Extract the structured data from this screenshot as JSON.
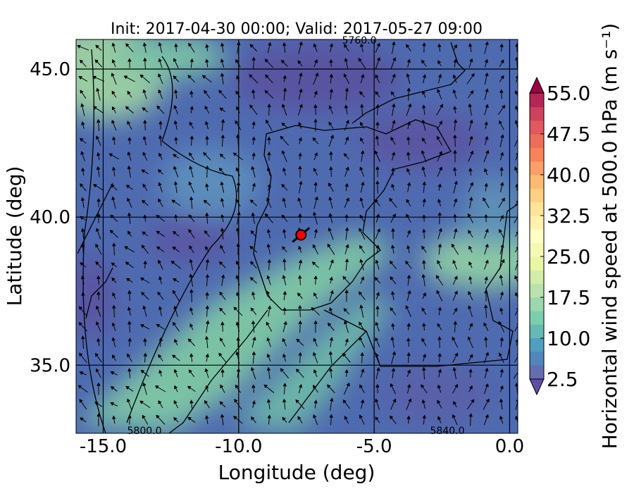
{
  "map": {
    "title": "Init: 2017-04-30 00:00; Valid: 2017-05-27 09:00",
    "xlabel": "Longitude (deg)",
    "ylabel": "Latitude (deg)",
    "xlim": [
      -16,
      0.3
    ],
    "ylim": [
      32.7,
      46.0
    ],
    "xticks": [
      {
        "value": -15,
        "label": "-15.0"
      },
      {
        "value": -10,
        "label": "-10.0"
      },
      {
        "value": -5,
        "label": "-5.0"
      },
      {
        "value": 0,
        "label": "0.0"
      }
    ],
    "yticks": [
      {
        "value": 35,
        "label": "35.0"
      },
      {
        "value": 40,
        "label": "40.0"
      },
      {
        "value": 45,
        "label": "45.0"
      }
    ],
    "contour_labels": [
      "5760.0",
      "5800.0",
      "5840.0"
    ],
    "marker": {
      "lon": -7.7,
      "lat": 39.4,
      "color": "#ff0000"
    },
    "colorbar": {
      "label": "Horizontal wind speed at 500.0 hPa (m s⁻¹)",
      "lim": [
        2.5,
        55
      ],
      "ticks": [
        2.5,
        {
          "value": 10,
          "label": "10.0"
        },
        17.5,
        {
          "value": 25,
          "label": "25.0"
        },
        32.5,
        {
          "value": 40,
          "label": "40.0"
        },
        47.5,
        {
          "value": 55,
          "label": "55.0"
        }
      ],
      "colors": [
        "#5e4fa2",
        "#3288bd",
        "#66c2a5",
        "#abdda4",
        "#e6f598",
        "#ffffbf",
        "#fee08b",
        "#fdae61",
        "#f46d43",
        "#d53e4f",
        "#9e0142"
      ]
    }
  }
}
